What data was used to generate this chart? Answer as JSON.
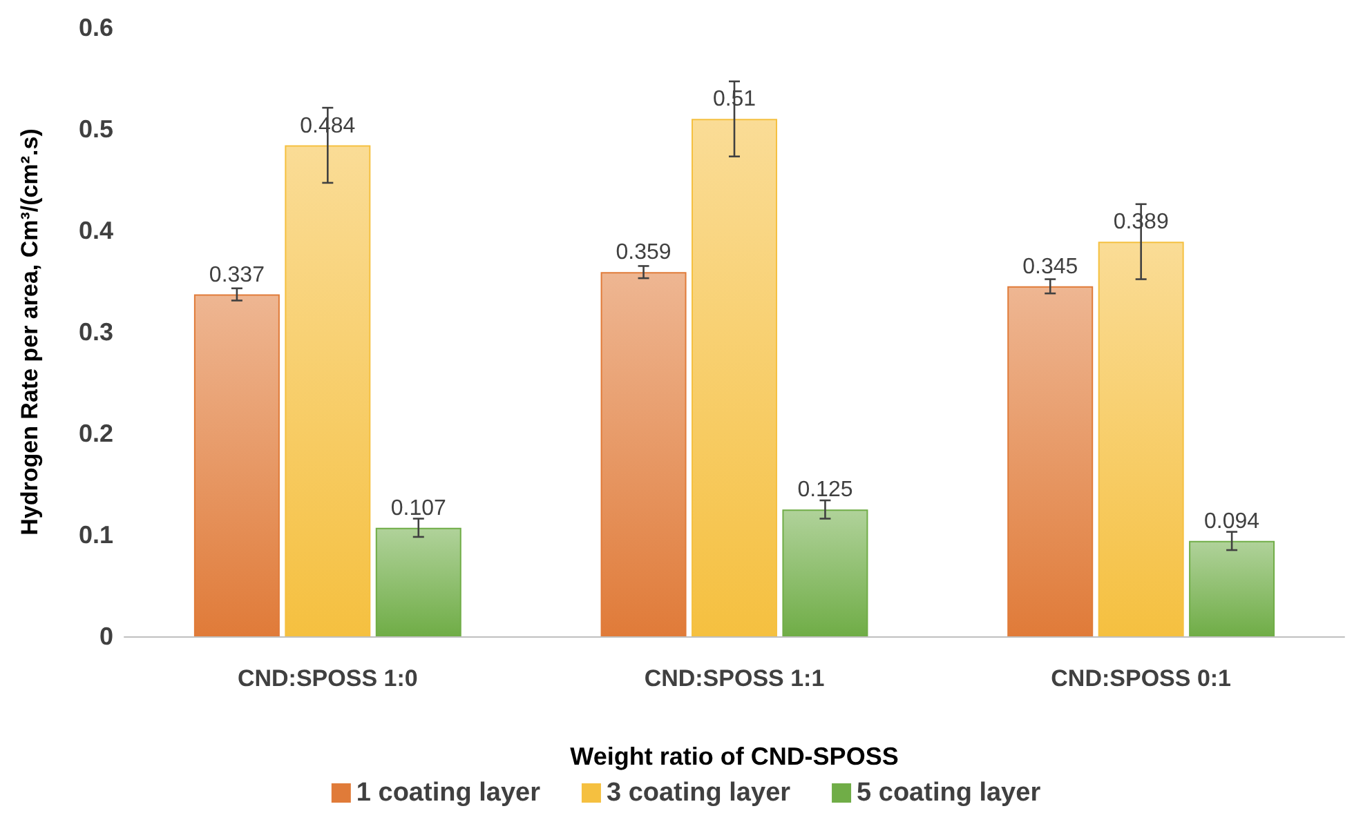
{
  "chart_data": {
    "type": "bar",
    "xlabel": "Weight ratio of CND-SPOSS",
    "ylabel": "Hydrogen Rate per area, Cm³/(cm².s)",
    "categories": [
      "CND:SPOSS 1:0",
      "CND:SPOSS 1:1",
      "CND:SPOSS 0:1"
    ],
    "series": [
      {
        "name": "1 coating layer",
        "color": "#e07b39",
        "values": [
          0.337,
          0.359,
          0.345
        ],
        "errors": [
          0.006,
          0.006,
          0.007
        ],
        "value_labels": [
          "0.337",
          "0.359",
          "0.345"
        ]
      },
      {
        "name": "3 coating layer",
        "color": "#f5c040",
        "values": [
          0.484,
          0.51,
          0.389
        ],
        "errors": [
          0.037,
          0.037,
          0.037
        ],
        "value_labels": [
          "0.484",
          "0.51",
          "0.389"
        ]
      },
      {
        "name": "5 coating layer",
        "color": "#70ad47",
        "values": [
          0.107,
          0.125,
          0.094
        ],
        "errors": [
          0.009,
          0.009,
          0.009
        ],
        "value_labels": [
          "0.107",
          "0.125",
          "0.094"
        ]
      }
    ],
    "ylim": [
      0,
      0.6
    ],
    "yticks": [
      0,
      0.1,
      0.2,
      0.3,
      0.4,
      0.5,
      0.6
    ],
    "grid": false,
    "legend": "bottom"
  }
}
